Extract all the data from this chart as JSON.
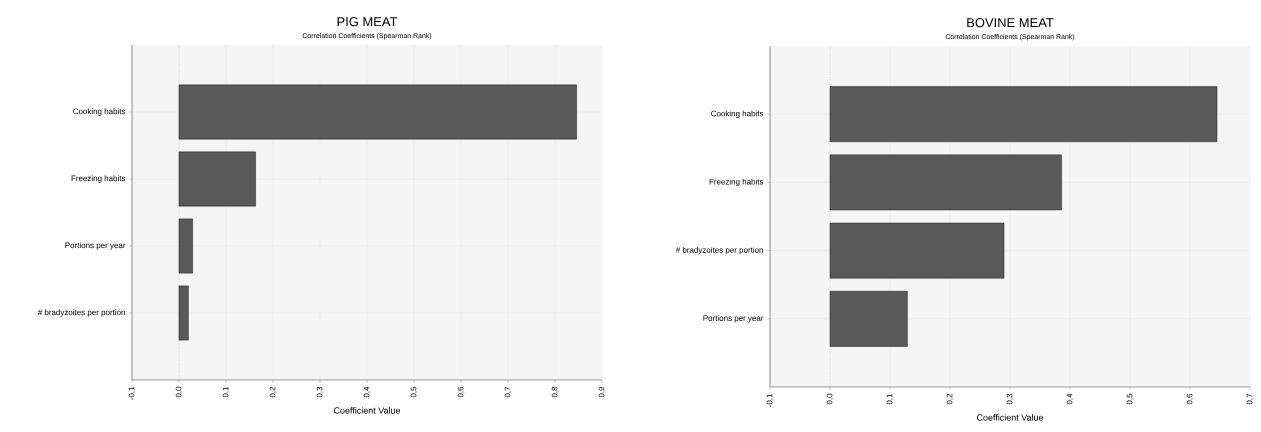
{
  "chart_data": [
    {
      "type": "bar",
      "orientation": "horizontal",
      "title": "PIG MEAT",
      "subtitle": "Correlation Coefficients (Spearman Rank)",
      "xlabel": "Coefficient Value",
      "categories": [
        "Cooking habits",
        "Freezing habits",
        "Portions per year",
        "# bradyzoites per portion"
      ],
      "values": [
        0.846,
        0.163,
        0.029,
        0.02
      ],
      "color": "#5a5a5a",
      "xlim": [
        -0.1,
        0.9
      ],
      "xticks": [
        {
          "value": -0.1,
          "label": "-0,1"
        },
        {
          "value": 0,
          "label": "0,0"
        },
        {
          "value": 0.1,
          "label": "0,1"
        },
        {
          "value": 0.2,
          "label": "0,2"
        },
        {
          "value": 0.3,
          "label": "0,3"
        },
        {
          "value": 0.4,
          "label": "0,4"
        },
        {
          "value": 0.5,
          "label": "0,5"
        },
        {
          "value": 0.6,
          "label": "0,6"
        },
        {
          "value": 0.7,
          "label": "0,7"
        },
        {
          "value": 0.8,
          "label": "0,8"
        },
        {
          "value": 0.9,
          "label": "0,9"
        }
      ],
      "grid": true,
      "ref_lines": [
        {
          "axis": "x",
          "value": 0,
          "line_style": "dotted"
        }
      ]
    },
    {
      "type": "bar",
      "orientation": "horizontal",
      "title": "BOVINE MEAT",
      "subtitle": "Correlation Coefficients (Spearman Rank)",
      "xlabel": "Coefficient Value",
      "categories": [
        "Cooking habits",
        "Freezing habits",
        "# bradyzoites per portion",
        "Portions per year"
      ],
      "values": [
        0.645,
        0.386,
        0.29,
        0.129
      ],
      "color": "#5a5a5a",
      "xlim": [
        -0.1,
        0.7
      ],
      "xticks": [
        {
          "value": -0.1,
          "label": "-0,1"
        },
        {
          "value": 0,
          "label": "0,0"
        },
        {
          "value": 0.1,
          "label": "0,1"
        },
        {
          "value": 0.2,
          "label": "0,2"
        },
        {
          "value": 0.3,
          "label": "0,3"
        },
        {
          "value": 0.4,
          "label": "0,4"
        },
        {
          "value": 0.5,
          "label": "0,5"
        },
        {
          "value": 0.6,
          "label": "0,6"
        },
        {
          "value": 0.7,
          "label": "0,7"
        }
      ],
      "grid": true,
      "ref_lines": [
        {
          "axis": "x",
          "value": 0,
          "line_style": "dotted"
        }
      ]
    }
  ]
}
